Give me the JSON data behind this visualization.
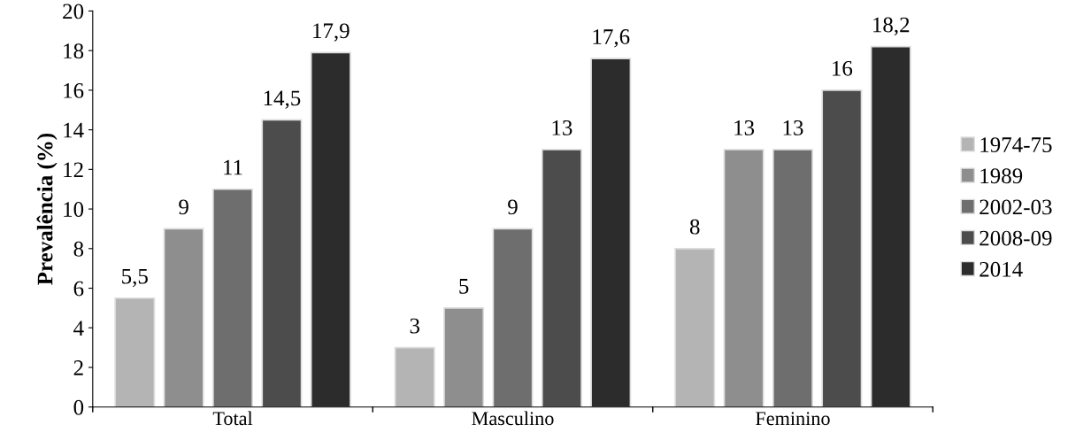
{
  "chart_data": {
    "type": "bar",
    "ylabel": "Prevalência (%)",
    "categories": [
      "Total",
      "Masculino",
      "Feminino"
    ],
    "series": [
      {
        "name": "1974-75",
        "color": "#b4b4b4",
        "values": [
          5.5,
          3,
          8
        ],
        "value_labels": [
          "5,5",
          "3",
          "8"
        ]
      },
      {
        "name": "1989",
        "color": "#8e8e8e",
        "values": [
          9,
          5,
          13
        ],
        "value_labels": [
          "9",
          "5",
          "13"
        ]
      },
      {
        "name": "2002-03",
        "color": "#6e6e6e",
        "values": [
          11,
          9,
          13
        ],
        "value_labels": [
          "11",
          "9",
          "13"
        ]
      },
      {
        "name": "2008-09",
        "color": "#4c4c4c",
        "values": [
          14.5,
          13,
          16
        ],
        "value_labels": [
          "14,5",
          "13",
          "16"
        ]
      },
      {
        "name": "2014",
        "color": "#2c2c2c",
        "values": [
          17.9,
          17.6,
          18.2
        ],
        "value_labels": [
          "17,9",
          "17,6",
          "18,2"
        ]
      }
    ],
    "ylim": [
      0,
      20
    ],
    "yticks": [
      0,
      2,
      4,
      6,
      8,
      10,
      12,
      14,
      16,
      18,
      20
    ],
    "grid": false,
    "legend": "right"
  }
}
